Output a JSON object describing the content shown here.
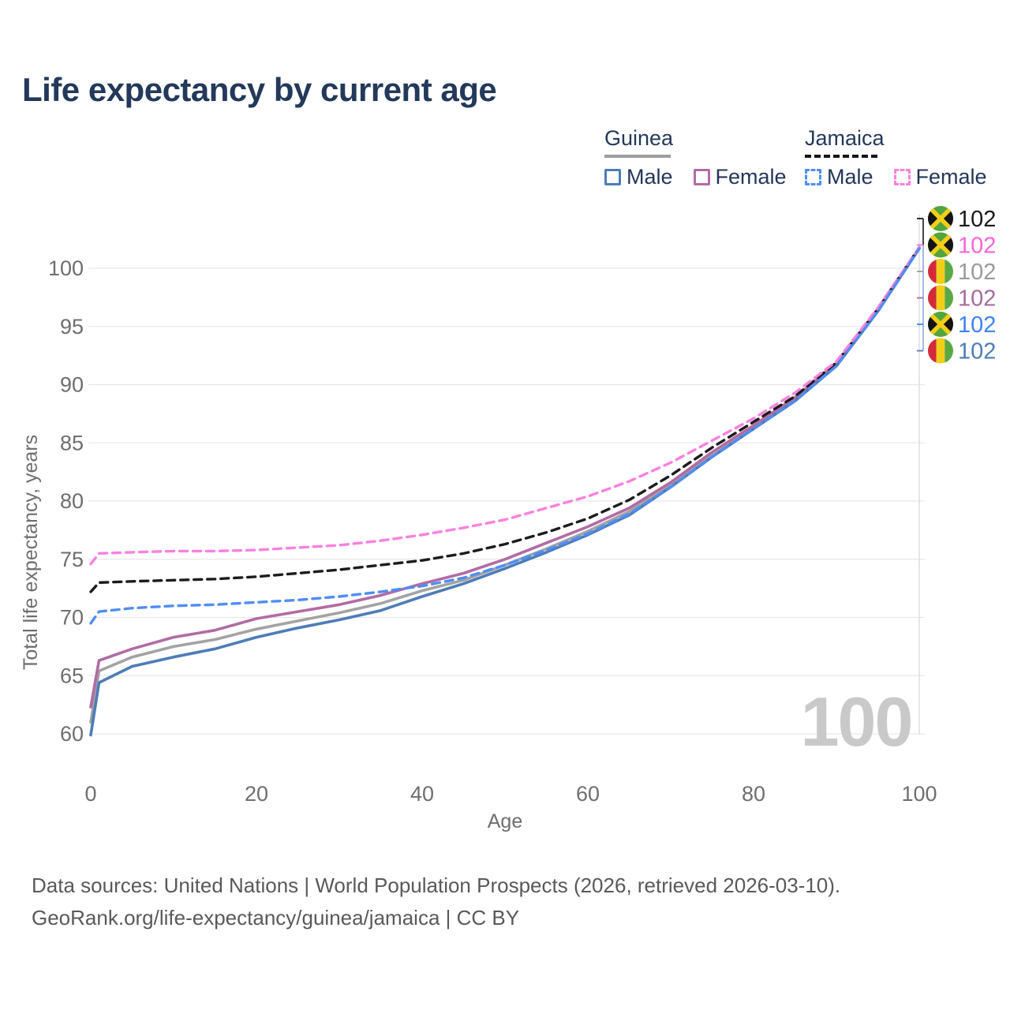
{
  "title": "Life expectancy by current age",
  "legend": {
    "groups": [
      {
        "name": "Guinea",
        "line_style": "solid",
        "line_color": "#9e9e9e",
        "items": [
          {
            "label": "Male",
            "color": "#4d7cb8",
            "dashed": false
          },
          {
            "label": "Female",
            "color": "#b26ba4",
            "dashed": false
          }
        ]
      },
      {
        "name": "Jamaica",
        "line_style": "dashed",
        "line_color": "#161616",
        "items": [
          {
            "label": "Male",
            "color": "#4f8df6",
            "dashed": true
          },
          {
            "label": "Female",
            "color": "#fb80e0",
            "dashed": true
          }
        ]
      }
    ]
  },
  "chart_data": {
    "type": "line",
    "title": "Life expectancy by current age",
    "xlabel": "Age",
    "ylabel": "Total life expectancy, years",
    "xlim": [
      0,
      100
    ],
    "ylim": [
      58,
      104
    ],
    "xticks": [
      0,
      20,
      40,
      60,
      80,
      100
    ],
    "yticks": [
      60,
      65,
      70,
      75,
      80,
      85,
      90,
      95,
      100
    ],
    "grid": true,
    "legend_position": "top-right",
    "hover_age": 100,
    "watermark": "100",
    "x": [
      0,
      1,
      5,
      10,
      15,
      20,
      25,
      30,
      35,
      40,
      45,
      50,
      55,
      60,
      65,
      70,
      75,
      80,
      85,
      90,
      95,
      100
    ],
    "series": [
      {
        "name": "Guinea All",
        "country": "guinea",
        "sex": "all",
        "color": "#a3a3a3",
        "dashed": false,
        "values": [
          61.0,
          65.4,
          66.6,
          67.5,
          68.1,
          69.0,
          69.7,
          70.4,
          71.2,
          72.3,
          73.2,
          74.5,
          75.9,
          77.4,
          79.1,
          81.4,
          83.9,
          86.3,
          88.7,
          91.7,
          96.4,
          101.7
        ],
        "end_label": {
          "text": "102",
          "row": 2,
          "color": "#9b9b9b"
        }
      },
      {
        "name": "Guinea Female",
        "country": "guinea",
        "sex": "female",
        "color": "#b26ba4",
        "dashed": false,
        "values": [
          62.3,
          66.3,
          67.3,
          68.3,
          68.9,
          69.9,
          70.5,
          71.1,
          71.9,
          72.9,
          73.8,
          75.0,
          76.4,
          77.8,
          79.4,
          81.6,
          84.2,
          86.5,
          88.9,
          91.8,
          96.5,
          101.7
        ],
        "end_label": {
          "text": "102",
          "row": 3,
          "color": "#a76aa0"
        }
      },
      {
        "name": "Guinea Male",
        "country": "guinea",
        "sex": "male",
        "color": "#4d7cb8",
        "dashed": false,
        "values": [
          59.9,
          64.4,
          65.8,
          66.6,
          67.3,
          68.3,
          69.1,
          69.8,
          70.6,
          71.8,
          72.9,
          74.2,
          75.6,
          77.1,
          78.8,
          81.2,
          83.8,
          86.2,
          88.6,
          91.6,
          96.3,
          101.7
        ],
        "end_label": {
          "text": "102",
          "row": 5,
          "color": "#4d7cb8"
        }
      },
      {
        "name": "Jamaica All",
        "country": "jamaica",
        "sex": "all",
        "color": "#1c1c1c",
        "dashed": true,
        "values": [
          72.2,
          73.0,
          73.1,
          73.2,
          73.3,
          73.5,
          73.8,
          74.1,
          74.5,
          74.9,
          75.5,
          76.3,
          77.3,
          78.5,
          80.1,
          82.2,
          84.6,
          86.8,
          89.0,
          91.9,
          96.5,
          101.8
        ],
        "end_label": {
          "text": "102",
          "row": 0,
          "color": "#1a1a1a"
        }
      },
      {
        "name": "Jamaica Female",
        "country": "jamaica",
        "sex": "female",
        "color": "#fb80e0",
        "dashed": true,
        "values": [
          74.6,
          75.5,
          75.6,
          75.7,
          75.7,
          75.8,
          76.0,
          76.2,
          76.6,
          77.1,
          77.7,
          78.4,
          79.4,
          80.4,
          81.7,
          83.3,
          85.2,
          87.1,
          89.3,
          92.0,
          96.6,
          101.8
        ],
        "end_label": {
          "text": "102",
          "row": 1,
          "color": "#fb64d9"
        }
      },
      {
        "name": "Jamaica Male",
        "country": "jamaica",
        "sex": "male",
        "color": "#4f8df6",
        "dashed": true,
        "values": [
          69.5,
          70.5,
          70.8,
          71.0,
          71.1,
          71.3,
          71.5,
          71.8,
          72.2,
          72.7,
          73.4,
          74.5,
          75.8,
          77.2,
          78.9,
          81.2,
          83.8,
          86.2,
          88.6,
          91.6,
          96.3,
          101.7
        ],
        "end_label": {
          "text": "102",
          "row": 4,
          "color": "#3f83f5"
        }
      }
    ],
    "flags": {
      "jamaica": {
        "green": "#52a53e",
        "black": "#141414",
        "gold": "#f2ce19"
      },
      "guinea": {
        "red": "#d32a39",
        "yellow": "#f2ce19",
        "green": "#5aa844"
      }
    },
    "colors": {
      "grid": "#e7e7e7",
      "hover_line": "#dcdcdc",
      "tick_text": "#6e6e6e",
      "watermark": "#c9c9c9",
      "bracket_top": "#1a1a1a",
      "bracket_bottom": "#8ea9e2"
    }
  },
  "footer": {
    "line1": "Data sources: United Nations | World Population Prospects (2026, retrieved 2026-03-10).",
    "line2": "GeoRank.org/life-expectancy/guinea/jamaica | CC BY"
  }
}
